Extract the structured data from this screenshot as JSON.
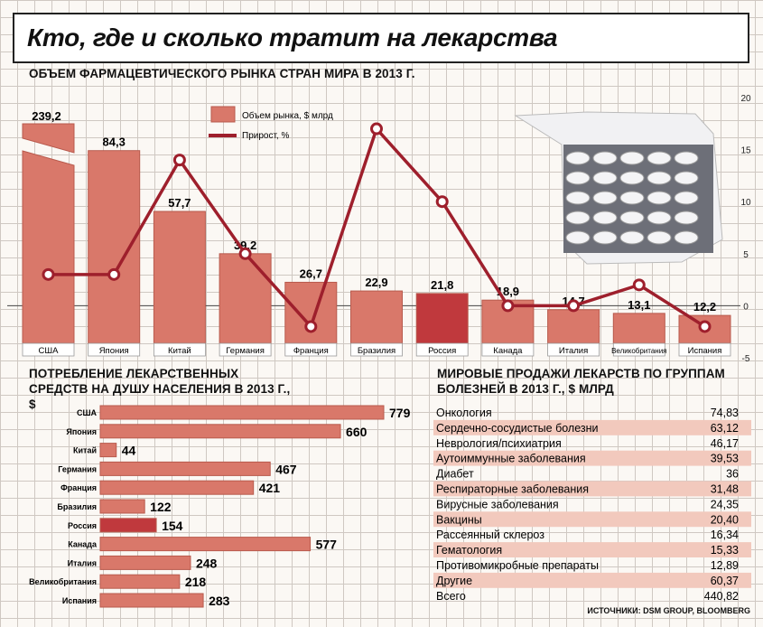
{
  "title": "Кто, где и сколько тратит на лекарства",
  "source": "ИСТОЧНИКИ: DSM GROUP, BLOOMBERG",
  "chart_data": [
    {
      "type": "bar",
      "title": "ОБЪЕМ ФАРМАЦЕВТИЧЕСКОГО РЫНКА СТРАН МИРА В 2013 Г.",
      "categories": [
        "США",
        "Япония",
        "Китай",
        "Германия",
        "Франция",
        "Бразилия",
        "Россия",
        "Канада",
        "Италия",
        "Великобритания",
        "Испания"
      ],
      "series": [
        {
          "name": "Объем рынка, $ млрд",
          "type": "bar",
          "values": [
            239.2,
            84.3,
            57.7,
            39.2,
            26.7,
            22.9,
            21.8,
            18.9,
            14.7,
            13.1,
            12.2
          ],
          "labels": [
            "239,2",
            "84,3",
            "57,7",
            "39,2",
            "26,7",
            "22,9",
            "21,8",
            "18,9",
            "14,7",
            "13,1",
            "12,2"
          ]
        },
        {
          "name": "Прирост, %",
          "type": "line",
          "values": [
            3,
            3,
            14,
            5,
            -2,
            17,
            10,
            0,
            0,
            2,
            -2
          ]
        }
      ],
      "y2_ticks": [
        "20",
        "15",
        "10",
        "5",
        "0",
        "-5"
      ],
      "y2lim": [
        -5,
        20
      ],
      "highlight": "Россия",
      "legend": "top-left",
      "colors": {
        "bar": "#d9786a",
        "highlight": "#c0393d",
        "line": "#9e1f2c"
      }
    },
    {
      "type": "bar",
      "orientation": "horizontal",
      "title": "ПОТРЕБЛЕНИЕ ЛЕКАРСТВЕННЫХ СРЕДСТВ НА ДУШУ НАСЕЛЕНИЯ В 2013 Г., $",
      "categories": [
        "США",
        "Япония",
        "Китай",
        "Германия",
        "Франция",
        "Бразилия",
        "Россия",
        "Канада",
        "Италия",
        "Великобритания",
        "Испания"
      ],
      "values": [
        779,
        660,
        44,
        467,
        421,
        122,
        154,
        577,
        248,
        218,
        283
      ],
      "highlight": "Россия"
    },
    {
      "type": "table",
      "title": "МИРОВЫЕ ПРОДАЖИ ЛЕКАРСТВ ПО ГРУППАМ БОЛЕЗНЕЙ В 2013 Г., $ МЛРД",
      "rows": [
        {
          "label": "Онкология",
          "value": "74,83"
        },
        {
          "label": "Сердечно-сосудистые болезни",
          "value": "63,12"
        },
        {
          "label": "Неврология/психиатрия",
          "value": "46,17"
        },
        {
          "label": "Аутоиммунные заболевания",
          "value": "39,53"
        },
        {
          "label": "Диабет",
          "value": "36"
        },
        {
          "label": "Респираторные заболевания",
          "value": "31,48"
        },
        {
          "label": "Вирусные заболевания",
          "value": "24,35"
        },
        {
          "label": "Вакцины",
          "value": "20,40"
        },
        {
          "label": "Рассеянный склероз",
          "value": "16,34"
        },
        {
          "label": "Гематология",
          "value": "15,33"
        },
        {
          "label": "Противомикробные препараты",
          "value": "12,89"
        },
        {
          "label": "Другие",
          "value": "60,37"
        },
        {
          "label": "Всего",
          "value": "440,82"
        }
      ]
    }
  ]
}
